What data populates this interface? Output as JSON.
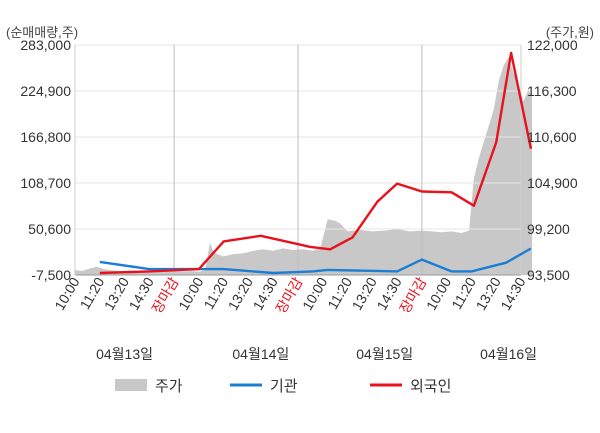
{
  "chart_data": {
    "type": "line",
    "left_axis_label": "(순매매량,주)",
    "right_axis_label": "(주가,원)",
    "left_ticks": [
      "283,000",
      "224,900",
      "166,800",
      "108,700",
      "50,600",
      "-7,500"
    ],
    "left_tick_values": [
      283000,
      224900,
      166800,
      108700,
      50600,
      -7500
    ],
    "right_ticks": [
      "122,000",
      "116,300",
      "110,600",
      "104,900",
      "99,200",
      "93,500"
    ],
    "right_tick_values": [
      122000,
      116300,
      110600,
      104900,
      99200,
      93500
    ],
    "left_ylim": [
      -7500,
      283000
    ],
    "right_ylim": [
      93500,
      122000
    ],
    "x_ticks": [
      {
        "label": "10:00",
        "red": false
      },
      {
        "label": "11:20",
        "red": false
      },
      {
        "label": "13:20",
        "red": false
      },
      {
        "label": "14:30",
        "red": false
      },
      {
        "label": "장마감",
        "red": true
      },
      {
        "label": "10:00",
        "red": false
      },
      {
        "label": "11:20",
        "red": false
      },
      {
        "label": "13:20",
        "red": false
      },
      {
        "label": "14:30",
        "red": false
      },
      {
        "label": "장마감",
        "red": true
      },
      {
        "label": "10:00",
        "red": false
      },
      {
        "label": "11:20",
        "red": false
      },
      {
        "label": "13:20",
        "red": false
      },
      {
        "label": "14:30",
        "red": false
      },
      {
        "label": "장마감",
        "red": true
      },
      {
        "label": "10:00",
        "red": false
      },
      {
        "label": "11:20",
        "red": false
      },
      {
        "label": "13:20",
        "red": false
      },
      {
        "label": "14:30",
        "red": false
      }
    ],
    "date_labels": [
      "04월13일",
      "04월14일",
      "04월15일",
      "04월16일"
    ],
    "legend": [
      {
        "name": "주가",
        "color": "#c8c8c8",
        "kind": "area"
      },
      {
        "name": "기관",
        "color": "#1a7fd4",
        "kind": "line"
      },
      {
        "name": "외국인",
        "color": "#e8121c",
        "kind": "line"
      }
    ],
    "series": [
      {
        "name": "기관",
        "color": "#1a7fd4",
        "x": [
          1,
          3,
          5,
          6,
          8,
          9.6,
          10.2,
          13,
          14,
          15.2,
          16,
          17.4,
          18.4
        ],
        "values": [
          9000,
          0,
          0,
          0,
          -5000,
          -3000,
          -1000,
          -3000,
          12000,
          -3000,
          -3000,
          8000,
          26000
        ]
      },
      {
        "name": "외국인",
        "color": "#e8121c",
        "x": [
          1,
          3,
          5,
          6,
          7.5,
          9.5,
          10.3,
          11.2,
          12.2,
          13,
          14,
          15.2,
          16.1,
          17,
          17.6,
          18.4
        ],
        "values": [
          -5000,
          -3000,
          0,
          35000,
          42000,
          28000,
          25000,
          40000,
          85000,
          108000,
          98000,
          97000,
          80000,
          160000,
          273000,
          152000
        ]
      }
    ],
    "price_area": {
      "name": "주가",
      "color": "#c8c8c8",
      "x": [
        0,
        0.3,
        0.6,
        0.9,
        1.2,
        1.5,
        2,
        2.5,
        3,
        3.5,
        4,
        4.3,
        4.7,
        5,
        5.25,
        5.45,
        5.6,
        5.8,
        6,
        6.4,
        6.8,
        7.2,
        7.6,
        8,
        8.4,
        8.8,
        9.2,
        9.6,
        9.9,
        10.2,
        10.5,
        10.7,
        11,
        11.5,
        12,
        12.5,
        13,
        13.5,
        14,
        14.4,
        14.8,
        15.2,
        15.6,
        15.9,
        16.1,
        16.3,
        16.5,
        16.7,
        16.9,
        17.1,
        17.3,
        17.5,
        17.7,
        17.9,
        18.1,
        18.3,
        18.45
      ],
      "prices": [
        94100,
        94000,
        94300,
        94500,
        94200,
        94100,
        93900,
        94000,
        93800,
        94000,
        94100,
        93900,
        94000,
        93900,
        94100,
        97500,
        96300,
        96000,
        95800,
        96100,
        96200,
        96500,
        96700,
        96500,
        96800,
        96600,
        96700,
        96500,
        96800,
        100400,
        100200,
        99900,
        98900,
        99100,
        98900,
        99000,
        99200,
        98900,
        99000,
        98900,
        98800,
        98900,
        98700,
        99000,
        105500,
        108000,
        110000,
        112000,
        114000,
        117500,
        119500,
        120500,
        118500,
        117000,
        115000,
        116500,
        115500
      ]
    }
  }
}
